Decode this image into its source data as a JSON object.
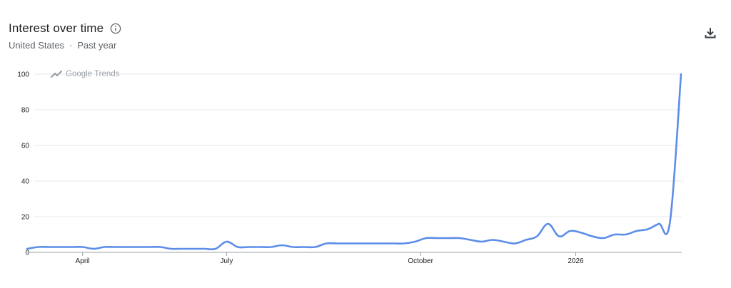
{
  "header": {
    "title": "Interest over time",
    "region": "United States",
    "separator": "·",
    "period": "Past year"
  },
  "icons": {
    "info": "info-icon",
    "download": "download-icon",
    "trends_logo": "trends-logo-icon"
  },
  "watermark": "Google Trends",
  "colors": {
    "line": "#5c8de8",
    "grid": "#e8eaed",
    "axis": "#9aa0a6"
  },
  "chart_data": {
    "type": "line",
    "title": "Interest over time",
    "ylim": [
      0,
      100
    ],
    "y_ticks": [
      0,
      20,
      40,
      60,
      80,
      100
    ],
    "x_tick_labels": [
      "April",
      "July",
      "October",
      "2026"
    ],
    "grid": true,
    "series": [
      {
        "values": [
          2,
          3,
          3,
          3,
          3,
          3,
          2,
          3,
          3,
          3,
          3,
          3,
          3,
          2,
          2,
          2,
          2,
          2,
          6,
          3,
          3,
          3,
          3,
          4,
          3,
          3,
          3,
          5,
          5,
          5,
          5,
          5,
          5,
          5,
          5,
          6,
          8,
          8,
          8,
          8,
          7,
          6,
          7,
          6,
          5,
          7,
          9,
          16,
          9,
          12,
          11,
          9,
          8,
          10,
          10,
          12,
          13,
          16,
          17,
          100
        ]
      }
    ]
  }
}
